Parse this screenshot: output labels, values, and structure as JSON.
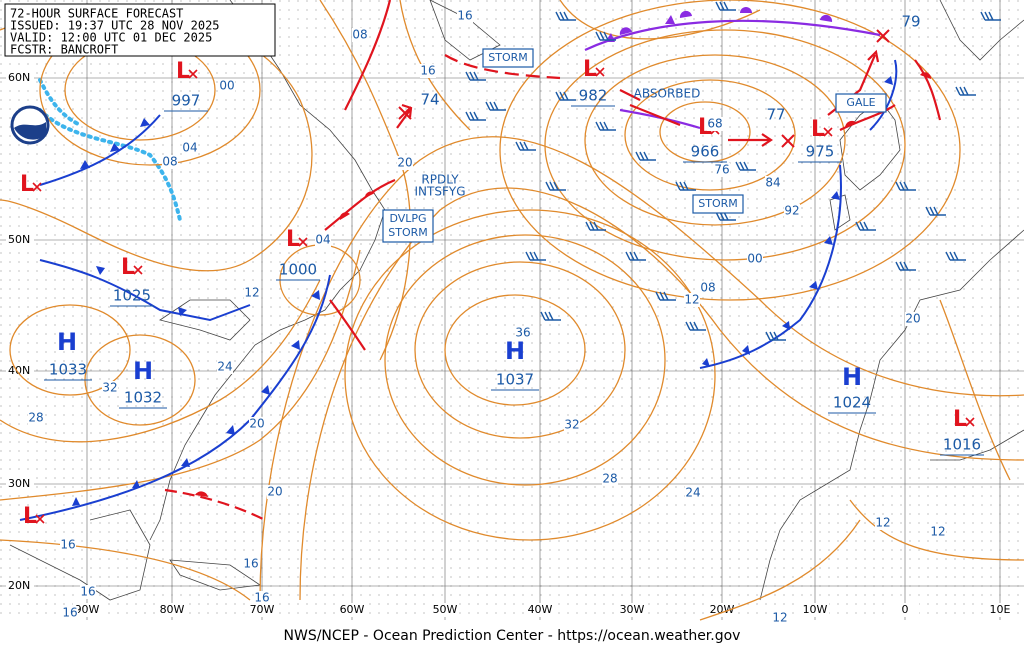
{
  "header": {
    "title": "72-HOUR SURFACE FORECAST",
    "issued": "ISSUED: 19:37 UTC 28 NOV 2025",
    "valid": "VALID: 12:00 UTC 01 DEC 2025",
    "forecaster": "FCSTR: BANCROFT"
  },
  "footer": "NWS/NCEP - Ocean Prediction Center - https://ocean.weather.gov",
  "lat_labels": [
    "60N",
    "50N",
    "40N",
    "30N",
    "20N"
  ],
  "lon_labels": [
    "90W",
    "80W",
    "70W",
    "60W",
    "50W",
    "40W",
    "30W",
    "20W",
    "10W",
    "0",
    "10E"
  ],
  "highs": [
    {
      "symbol": "H",
      "pressure": "1033"
    },
    {
      "symbol": "H",
      "pressure": "1032"
    },
    {
      "symbol": "H",
      "pressure": "1037"
    },
    {
      "symbol": "H",
      "pressure": "1024"
    }
  ],
  "lows": [
    {
      "symbol": "L",
      "pressure": "997"
    },
    {
      "symbol": "L",
      "pressure": "1025"
    },
    {
      "symbol": "L",
      "pressure": "1000"
    },
    {
      "symbol": "L",
      "pressure": "982"
    },
    {
      "symbol": "L",
      "pressure": "966"
    },
    {
      "symbol": "L",
      "pressure": "975"
    },
    {
      "symbol": "L",
      "pressure": "1016"
    },
    {
      "symbol": "L"
    },
    {
      "symbol": "L"
    }
  ],
  "forecast_positions": [
    "74",
    "77",
    "79"
  ],
  "warning_boxes": [
    {
      "lines": [
        "STORM"
      ]
    },
    {
      "lines": [
        "STORM"
      ]
    },
    {
      "lines": [
        "DVLPG",
        "STORM"
      ]
    },
    {
      "lines": [
        "GALE"
      ]
    }
  ],
  "annotations": [
    "ABSORBED",
    "RPDLY",
    "INTSFYG"
  ],
  "isobar_labels": [
    "16",
    "08",
    "00",
    "16",
    "04",
    "08",
    "04",
    "12",
    "24",
    "32",
    "28",
    "20",
    "20",
    "32",
    "28",
    "24",
    "00",
    "08",
    "12",
    "20",
    "12",
    "12",
    "16",
    "16",
    "16",
    "16",
    "16",
    "12",
    "36",
    "68",
    "76",
    "84",
    "92",
    "20"
  ]
}
